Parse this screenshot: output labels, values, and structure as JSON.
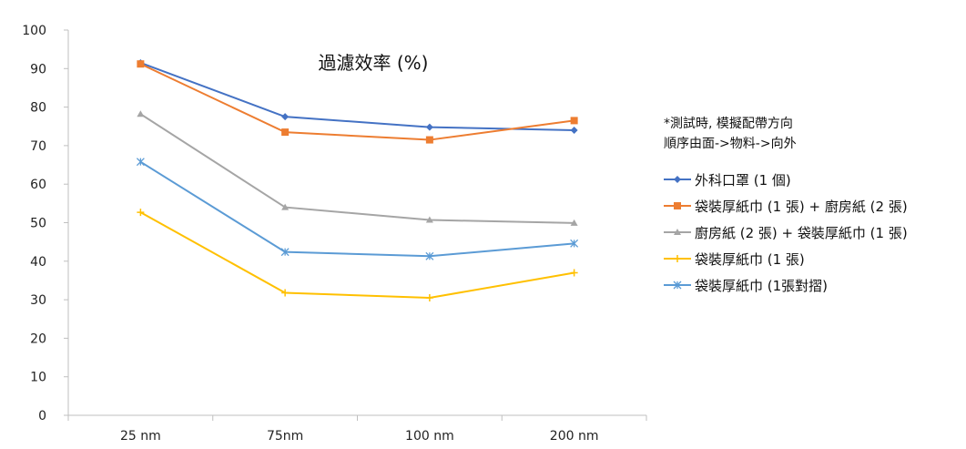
{
  "chart_data": {
    "type": "line",
    "title": "過濾效率 (%)",
    "note_lines": [
      "*測試時, 模擬配帶方向",
      "順序由面->物料->向外"
    ],
    "categories": [
      "25 nm",
      "75nm",
      "100 nm",
      "200 nm"
    ],
    "ylim": [
      0,
      100
    ],
    "yticks": [
      0,
      10,
      20,
      30,
      40,
      50,
      60,
      70,
      80,
      90,
      100
    ],
    "grid": false,
    "legend_position": "right",
    "series": [
      {
        "name": "外科口罩 (1 個)",
        "values": [
          91.5,
          77.5,
          74.8,
          74
        ],
        "color": "#4472C4",
        "marker": "diamond"
      },
      {
        "name": "袋裝厚紙巾 (1 張) + 廚房紙 (2 張)",
        "values": [
          91.2,
          73.5,
          71.5,
          76.5
        ],
        "color": "#ED7D31",
        "marker": "square"
      },
      {
        "name": "廚房紙 (2 張) + 袋裝厚紙巾 (1 張)",
        "values": [
          78.2,
          54,
          50.7,
          49.9
        ],
        "color": "#A5A5A5",
        "marker": "triangle"
      },
      {
        "name": "袋裝厚紙巾 (1 張)",
        "values": [
          52.7,
          31.8,
          30.5,
          37
        ],
        "color": "#FFC000",
        "marker": "cross"
      },
      {
        "name": "袋裝厚紙巾 (1張對摺)",
        "values": [
          65.8,
          42.4,
          41.3,
          44.6
        ],
        "color": "#5B9BD5",
        "marker": "star"
      }
    ]
  }
}
